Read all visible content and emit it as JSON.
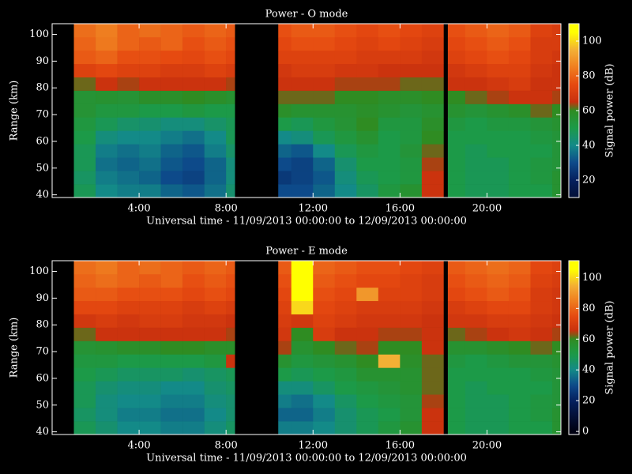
{
  "chart_data": [
    {
      "type": "heatmap",
      "title": "Power - O mode",
      "xlabel": "Universal time - 11/09/2013 00:00:00 to 12/09/2013 00:00:00",
      "ylabel": "Range (km)",
      "colorbar_label": "Signal power (dB)",
      "xbins": [
        1,
        2,
        3,
        4,
        5,
        6,
        7,
        8,
        8.4,
        10.4,
        11,
        12,
        13,
        14,
        15,
        16,
        17,
        18,
        18.2,
        19,
        20,
        21,
        22,
        23,
        23.4
      ],
      "ybins": [
        39,
        44,
        49,
        54,
        59,
        64,
        69,
        74,
        79,
        84,
        89,
        94,
        99,
        104
      ],
      "xlim": [
        0,
        23.4
      ],
      "ylim": [
        39,
        104
      ],
      "xticks": [
        {
          "value": 4,
          "label": "4:00"
        },
        {
          "value": 8,
          "label": "8:00"
        },
        {
          "value": 12,
          "label": "12:00"
        },
        {
          "value": 16,
          "label": "16:00"
        },
        {
          "value": 20,
          "label": "20:00"
        }
      ],
      "yticks": [
        40,
        50,
        60,
        70,
        80,
        90,
        100
      ],
      "clim": [
        10,
        110
      ],
      "cticks": [
        20,
        40,
        60,
        80,
        100
      ],
      "colormap": [
        [
          0,
          "#000010"
        ],
        [
          20,
          "#06205e"
        ],
        [
          30,
          "#0d4a8a"
        ],
        [
          40,
          "#138a88"
        ],
        [
          50,
          "#1c9a48"
        ],
        [
          60,
          "#2f8c22"
        ],
        [
          65,
          "#c8300e"
        ],
        [
          75,
          "#e64a10"
        ],
        [
          85,
          "#ef7e20"
        ],
        [
          95,
          "#f3b035"
        ],
        [
          105,
          "#ffff00"
        ]
      ],
      "values": [
        [
          48,
          40,
          38,
          38,
          34,
          32,
          36,
          44,
          null,
          30,
          30,
          34,
          40,
          46,
          52,
          56,
          66,
          null,
          50,
          48,
          48,
          50,
          50,
          56
        ],
        [
          46,
          38,
          36,
          34,
          30,
          28,
          34,
          42,
          null,
          26,
          28,
          32,
          42,
          48,
          50,
          52,
          66,
          null,
          50,
          48,
          48,
          50,
          52,
          56
        ],
        [
          48,
          36,
          34,
          36,
          32,
          30,
          34,
          42,
          null,
          30,
          28,
          34,
          44,
          50,
          50,
          52,
          64,
          null,
          50,
          48,
          48,
          50,
          52,
          54
        ],
        [
          48,
          38,
          36,
          38,
          34,
          32,
          38,
          45,
          null,
          34,
          32,
          40,
          48,
          52,
          50,
          54,
          62,
          null,
          50,
          48,
          50,
          50,
          50,
          54
        ],
        [
          50,
          42,
          40,
          40,
          38,
          36,
          40,
          48,
          null,
          40,
          42,
          48,
          52,
          56,
          50,
          52,
          60,
          null,
          50,
          50,
          50,
          50,
          52,
          54
        ],
        [
          52,
          48,
          45,
          44,
          42,
          42,
          45,
          48,
          null,
          50,
          48,
          52,
          55,
          60,
          52,
          52,
          58,
          null,
          52,
          50,
          52,
          52,
          54,
          56
        ],
        [
          55,
          52,
          52,
          50,
          50,
          52,
          50,
          50,
          null,
          58,
          56,
          56,
          56,
          58,
          56,
          54,
          56,
          null,
          56,
          54,
          56,
          58,
          62,
          60
        ],
        [
          55,
          56,
          55,
          58,
          58,
          60,
          58,
          56,
          null,
          62,
          62,
          62,
          60,
          60,
          58,
          58,
          60,
          null,
          60,
          62,
          64,
          66,
          66,
          64
        ],
        [
          62,
          66,
          64,
          66,
          66,
          66,
          66,
          64,
          null,
          66,
          66,
          66,
          64,
          64,
          64,
          62,
          62,
          null,
          66,
          66,
          68,
          70,
          66,
          66
        ],
        [
          72,
          74,
          72,
          72,
          70,
          70,
          72,
          70,
          null,
          68,
          70,
          70,
          68,
          68,
          66,
          66,
          66,
          null,
          68,
          70,
          72,
          72,
          68,
          66
        ],
        [
          78,
          80,
          76,
          76,
          75,
          74,
          76,
          74,
          null,
          72,
          72,
          72,
          72,
          70,
          70,
          70,
          68,
          null,
          72,
          74,
          76,
          74,
          70,
          68
        ],
        [
          80,
          84,
          80,
          78,
          80,
          76,
          78,
          76,
          null,
          74,
          76,
          76,
          74,
          72,
          74,
          72,
          70,
          null,
          74,
          76,
          78,
          76,
          70,
          70
        ],
        [
          82,
          85,
          80,
          82,
          80,
          78,
          80,
          78,
          null,
          76,
          78,
          78,
          76,
          74,
          76,
          74,
          72,
          null,
          76,
          78,
          80,
          78,
          72,
          70
        ]
      ]
    },
    {
      "type": "heatmap",
      "title": "Power - E mode",
      "xlabel": "Universal time - 11/09/2013 00:00:00 to 12/09/2013 00:00:00",
      "ylabel": "Range (km)",
      "colorbar_label": "Signal power (dB)",
      "xbins": [
        1,
        2,
        3,
        4,
        5,
        6,
        7,
        8,
        8.4,
        10.4,
        11,
        12,
        13,
        14,
        15,
        16,
        17,
        18,
        18.2,
        19,
        20,
        21,
        22,
        23,
        23.4
      ],
      "ybins": [
        39,
        44,
        49,
        54,
        59,
        64,
        69,
        74,
        79,
        84,
        89,
        94,
        99,
        104
      ],
      "xlim": [
        0,
        23.4
      ],
      "ylim": [
        39,
        104
      ],
      "xticks": [
        {
          "value": 4,
          "label": "4:00"
        },
        {
          "value": 8,
          "label": "8:00"
        },
        {
          "value": 12,
          "label": "12:00"
        },
        {
          "value": 16,
          "label": "16:00"
        },
        {
          "value": 20,
          "label": "20:00"
        }
      ],
      "yticks": [
        40,
        50,
        60,
        70,
        80,
        90,
        100
      ],
      "clim": [
        -2,
        111
      ],
      "cticks": [
        0,
        20,
        40,
        60,
        80,
        100
      ],
      "colormap": [
        [
          0,
          "#000010"
        ],
        [
          20,
          "#06205e"
        ],
        [
          30,
          "#0d4a8a"
        ],
        [
          40,
          "#138a88"
        ],
        [
          50,
          "#1c9a48"
        ],
        [
          60,
          "#2f8c22"
        ],
        [
          65,
          "#c8300e"
        ],
        [
          75,
          "#e64a10"
        ],
        [
          85,
          "#ef7e20"
        ],
        [
          95,
          "#f3b035"
        ],
        [
          105,
          "#ffff00"
        ]
      ],
      "values": [
        [
          48,
          44,
          40,
          40,
          38,
          38,
          42,
          46,
          null,
          38,
          38,
          40,
          44,
          48,
          52,
          56,
          66,
          null,
          50,
          48,
          48,
          50,
          50,
          56
        ],
        [
          46,
          42,
          38,
          38,
          36,
          36,
          40,
          44,
          null,
          34,
          34,
          38,
          44,
          48,
          50,
          54,
          66,
          null,
          50,
          48,
          48,
          50,
          52,
          56
        ],
        [
          48,
          42,
          40,
          40,
          38,
          38,
          42,
          44,
          null,
          38,
          36,
          40,
          46,
          50,
          52,
          54,
          64,
          null,
          50,
          48,
          48,
          50,
          52,
          54
        ],
        [
          48,
          44,
          42,
          42,
          40,
          40,
          44,
          46,
          null,
          42,
          42,
          46,
          50,
          52,
          54,
          56,
          62,
          null,
          50,
          48,
          50,
          50,
          50,
          54
        ],
        [
          50,
          48,
          46,
          46,
          46,
          44,
          46,
          48,
          null,
          50,
          48,
          50,
          52,
          56,
          56,
          56,
          62,
          null,
          50,
          50,
          50,
          50,
          52,
          54
        ],
        [
          52,
          52,
          50,
          50,
          50,
          50,
          52,
          66,
          null,
          56,
          52,
          54,
          56,
          60,
          95,
          58,
          62,
          null,
          52,
          50,
          52,
          54,
          54,
          56
        ],
        [
          55,
          56,
          58,
          58,
          60,
          60,
          58,
          58,
          null,
          64,
          56,
          60,
          62,
          64,
          60,
          60,
          66,
          null,
          56,
          56,
          58,
          60,
          62,
          60
        ],
        [
          62,
          66,
          66,
          66,
          66,
          66,
          66,
          64,
          null,
          68,
          60,
          70,
          66,
          66,
          64,
          64,
          66,
          null,
          62,
          64,
          66,
          68,
          66,
          64
        ],
        [
          68,
          70,
          68,
          70,
          70,
          68,
          68,
          66,
          null,
          70,
          68,
          72,
          70,
          68,
          68,
          68,
          66,
          null,
          68,
          68,
          70,
          70,
          68,
          66
        ],
        [
          74,
          74,
          72,
          72,
          72,
          70,
          72,
          70,
          null,
          72,
          100,
          74,
          72,
          70,
          70,
          70,
          68,
          null,
          70,
          72,
          74,
          74,
          70,
          68
        ],
        [
          78,
          78,
          76,
          76,
          76,
          74,
          76,
          74,
          null,
          74,
          105,
          76,
          74,
          90,
          72,
          72,
          70,
          null,
          74,
          76,
          78,
          76,
          70,
          68
        ],
        [
          80,
          82,
          80,
          78,
          80,
          76,
          78,
          76,
          null,
          76,
          105,
          78,
          76,
          74,
          74,
          72,
          70,
          null,
          76,
          78,
          80,
          78,
          72,
          70
        ],
        [
          82,
          84,
          80,
          82,
          80,
          78,
          80,
          78,
          null,
          78,
          105,
          80,
          78,
          76,
          76,
          74,
          72,
          null,
          78,
          80,
          82,
          80,
          74,
          72
        ]
      ]
    }
  ]
}
